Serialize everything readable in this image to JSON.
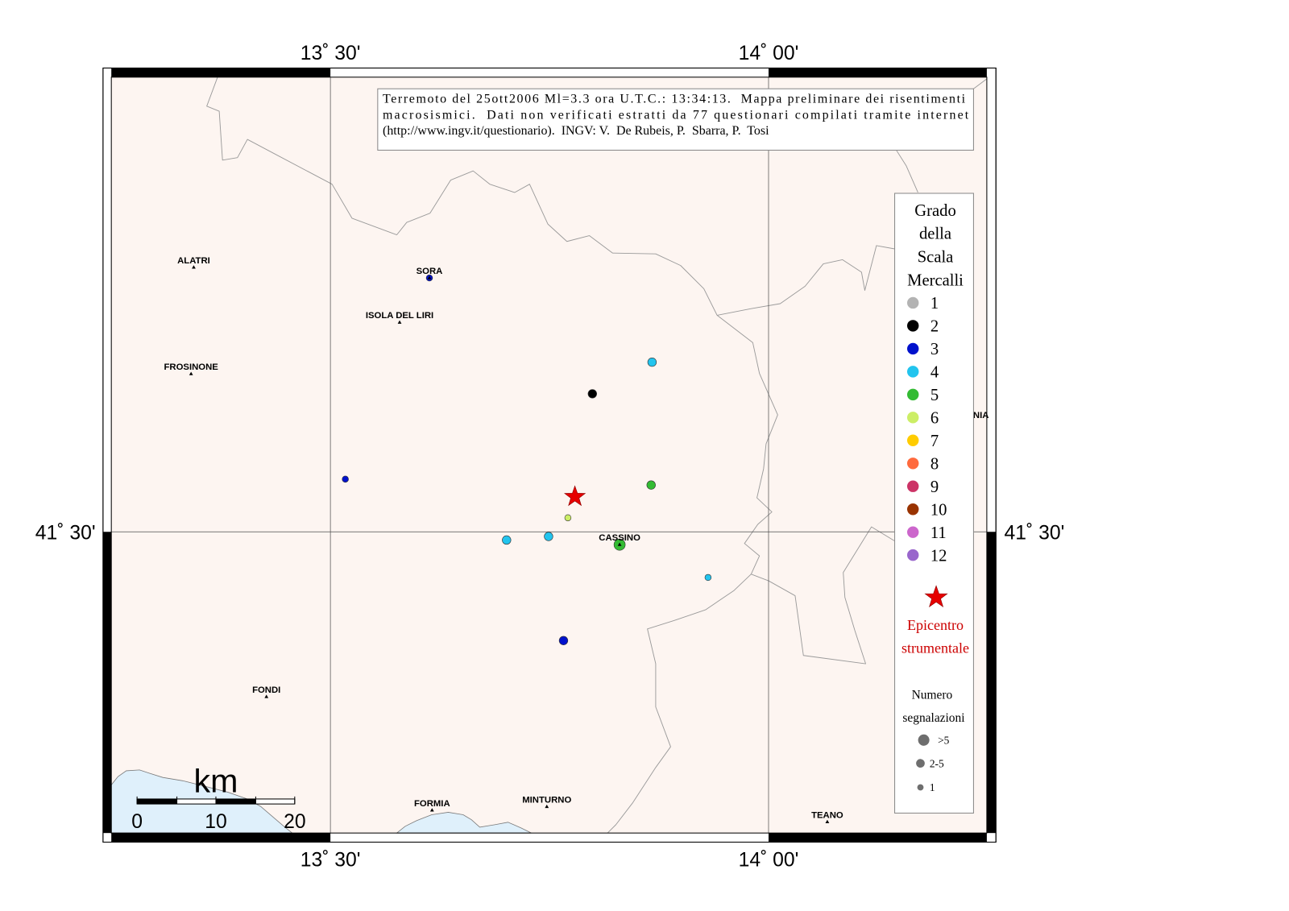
{
  "map": {
    "title_lines": [
      "Terremoto del 25ott2006 Ml=3.3 ora U.T.C.: 13:34:13.  Mappa preliminare dei risentimenti",
      "macrosismici.  Dati non verificati estratti da 77 questionari compilati tramite internet",
      "(http://www.ingv.it/questionario).  INGV: V.  De Rubeis, P.  Sbarra, P.  Tosi"
    ],
    "lon_tick_labels": [
      "13˚ 30'",
      "14˚ 00'"
    ],
    "lat_tick_labels": [
      "41˚ 30'"
    ],
    "partial_place_label": "NIA"
  },
  "legend": {
    "heading": [
      "Grado",
      "della",
      "Scala",
      "Mercalli"
    ],
    "intensity": [
      {
        "label": "1",
        "color": "#b3b3b3"
      },
      {
        "label": "2",
        "color": "#000000"
      },
      {
        "label": "3",
        "color": "#0011cc"
      },
      {
        "label": "4",
        "color": "#22c4ee"
      },
      {
        "label": "5",
        "color": "#33bb33"
      },
      {
        "label": "6",
        "color": "#ccee66"
      },
      {
        "label": "7",
        "color": "#ffcc00"
      },
      {
        "label": "8",
        "color": "#ff6a3d"
      },
      {
        "label": "9",
        "color": "#cc3366"
      },
      {
        "label": "10",
        "color": "#993300"
      },
      {
        "label": "11",
        "color": "#cc66cc"
      },
      {
        "label": "12",
        "color": "#9966cc"
      }
    ],
    "epicenter_label": [
      "Epicentro",
      "strumentale"
    ],
    "count_heading": [
      "Numero",
      "segnalazioni"
    ],
    "count_classes": [
      ">5",
      "2-5",
      "1"
    ]
  },
  "places": [
    {
      "name": "ALATRI",
      "lon": 13.344,
      "lat": 41.726
    },
    {
      "name": "SORA",
      "lon": 13.613,
      "lat": 41.717
    },
    {
      "name": "ISOLA DEL LIRI",
      "lon": 13.579,
      "lat": 41.679
    },
    {
      "name": "FROSINONE",
      "lon": 13.341,
      "lat": 41.635
    },
    {
      "name": "CASSINO",
      "lon": 13.83,
      "lat": 41.489
    },
    {
      "name": "FONDI",
      "lon": 13.427,
      "lat": 41.359
    },
    {
      "name": "FORMIA",
      "lon": 13.616,
      "lat": 41.262
    },
    {
      "name": "MINTURNO",
      "lon": 13.747,
      "lat": 41.265
    },
    {
      "name": "TEANO",
      "lon": 14.067,
      "lat": 41.252
    }
  ],
  "observations": [
    {
      "lon": 13.867,
      "lat": 41.645,
      "intensity": 4,
      "count": "2-5"
    },
    {
      "lon": 13.799,
      "lat": 41.618,
      "intensity": 2,
      "count": "2-5"
    },
    {
      "lon": 13.517,
      "lat": 41.545,
      "intensity": 3,
      "count": "1"
    },
    {
      "lon": 13.866,
      "lat": 41.54,
      "intensity": 5,
      "count": "2-5"
    },
    {
      "lon": 13.771,
      "lat": 41.512,
      "intensity": 6,
      "count": "1"
    },
    {
      "lon": 13.701,
      "lat": 41.493,
      "intensity": 4,
      "count": "2-5"
    },
    {
      "lon": 13.749,
      "lat": 41.496,
      "intensity": 4,
      "count": "2-5"
    },
    {
      "lon": 13.83,
      "lat": 41.489,
      "intensity": 5,
      "count": ">5"
    },
    {
      "lon": 13.931,
      "lat": 41.461,
      "intensity": 4,
      "count": "1"
    },
    {
      "lon": 13.766,
      "lat": 41.407,
      "intensity": 3,
      "count": "2-5"
    },
    {
      "lon": 13.613,
      "lat": 41.717,
      "intensity": 3,
      "count": "1"
    }
  ],
  "epicenter": {
    "lon": 13.779,
    "lat": 41.53
  },
  "scale_bar": {
    "unit": "km",
    "labels": [
      "0",
      "10",
      "20"
    ]
  },
  "colors": {
    "land": "#fdf5f1",
    "sea": "#dff0fb",
    "boundary": "#9a9a9a",
    "epicenter": "#e60000",
    "epicenter_text": "#cc0000",
    "count_marker": "#6e6e6e"
  }
}
